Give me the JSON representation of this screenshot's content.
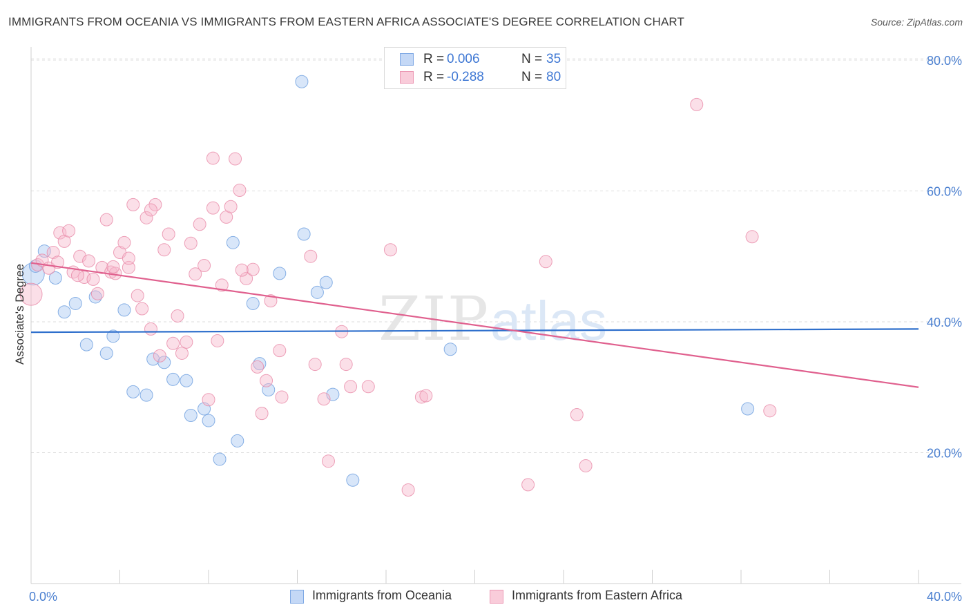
{
  "header": {
    "title": "IMMIGRANTS FROM OCEANIA VS IMMIGRANTS FROM EASTERN AFRICA ASSOCIATE'S DEGREE CORRELATION CHART",
    "source": "Source: ZipAtlas.com"
  },
  "watermark": {
    "zip": "ZIP",
    "atlas": "atlas"
  },
  "stats_legend": {
    "rows": [
      {
        "r_label": "R =",
        "r_value": "0.006",
        "n_label": "N =",
        "n_value": "35",
        "color": "#a9c8f2"
      },
      {
        "r_label": "R =",
        "r_value": "-0.288",
        "n_label": "N =",
        "n_value": "80",
        "color": "#f6b8cc"
      }
    ]
  },
  "bottom_legend": {
    "items": [
      {
        "label": "Immigrants from Oceania",
        "color": "#a9c8f2"
      },
      {
        "label": "Immigrants from Eastern Africa",
        "color": "#f6b8cc"
      }
    ]
  },
  "chart_data": {
    "type": "scatter",
    "title": "IMMIGRANTS FROM OCEANIA VS IMMIGRANTS FROM EASTERN AFRICA ASSOCIATE'S DEGREE CORRELATION CHART",
    "xlabel": "",
    "ylabel": "Associate's Degree",
    "xlim": [
      0,
      40
    ],
    "ylim": [
      0,
      82
    ],
    "x_tick_labels": [
      {
        "value": 0,
        "label": "0.0%"
      },
      {
        "value": 40,
        "label": "40.0%"
      }
    ],
    "y_tick_labels": [
      {
        "value": 20,
        "label": "20.0%"
      },
      {
        "value": 40,
        "label": "40.0%"
      },
      {
        "value": 60,
        "label": "60.0%"
      },
      {
        "value": 80,
        "label": "80.0%"
      }
    ],
    "grid": "horizontal-dashed",
    "legend_position": "bottom",
    "series": [
      {
        "name": "Immigrants from Oceania",
        "color": "#a9c8f2",
        "stroke": "#6c9edf",
        "trend": {
          "x": [
            0,
            40
          ],
          "y": [
            38.4,
            38.9
          ],
          "color": "#2e6fcc"
        },
        "points": [
          [
            0.1,
            47.3
          ],
          [
            0.6,
            50.8
          ],
          [
            1.1,
            46.7
          ],
          [
            1.5,
            41.5
          ],
          [
            2.0,
            42.8
          ],
          [
            2.5,
            36.5
          ],
          [
            2.9,
            43.8
          ],
          [
            3.4,
            35.2
          ],
          [
            3.7,
            37.8
          ],
          [
            4.2,
            41.8
          ],
          [
            4.6,
            29.3
          ],
          [
            5.2,
            28.8
          ],
          [
            5.5,
            34.3
          ],
          [
            6.0,
            33.8
          ],
          [
            6.4,
            31.2
          ],
          [
            7.0,
            31.0
          ],
          [
            7.2,
            25.7
          ],
          [
            7.8,
            26.7
          ],
          [
            8.0,
            24.9
          ],
          [
            8.5,
            19.0
          ],
          [
            9.1,
            52.1
          ],
          [
            9.3,
            21.8
          ],
          [
            10.0,
            42.8
          ],
          [
            10.3,
            33.6
          ],
          [
            10.7,
            29.6
          ],
          [
            11.2,
            47.4
          ],
          [
            12.3,
            53.4
          ],
          [
            12.9,
            44.5
          ],
          [
            13.3,
            46.0
          ],
          [
            13.6,
            28.9
          ],
          [
            14.5,
            15.8
          ],
          [
            12.2,
            76.7
          ],
          [
            18.9,
            35.8
          ],
          [
            32.3,
            26.7
          ],
          [
            0.2,
            48.5
          ]
        ]
      },
      {
        "name": "Immigrants from Eastern Africa",
        "color": "#f6b8cc",
        "stroke": "#e88aa8",
        "trend": {
          "x": [
            0,
            40
          ],
          "y": [
            49.0,
            30.0
          ],
          "color": "#e0608e"
        },
        "points": [
          [
            0.0,
            44.2
          ],
          [
            0.3,
            48.7
          ],
          [
            0.5,
            49.4
          ],
          [
            0.8,
            48.2
          ],
          [
            1.0,
            50.6
          ],
          [
            1.3,
            53.6
          ],
          [
            1.5,
            52.3
          ],
          [
            1.7,
            53.9
          ],
          [
            1.9,
            47.6
          ],
          [
            2.2,
            50.0
          ],
          [
            2.4,
            46.8
          ],
          [
            2.6,
            49.3
          ],
          [
            2.8,
            46.5
          ],
          [
            3.0,
            44.3
          ],
          [
            3.2,
            48.3
          ],
          [
            3.4,
            55.6
          ],
          [
            3.6,
            47.6
          ],
          [
            3.8,
            47.4
          ],
          [
            4.0,
            50.6
          ],
          [
            4.2,
            52.1
          ],
          [
            4.4,
            48.3
          ],
          [
            4.6,
            57.9
          ],
          [
            4.8,
            44.0
          ],
          [
            5.0,
            42.0
          ],
          [
            5.2,
            55.9
          ],
          [
            5.4,
            38.9
          ],
          [
            5.6,
            57.9
          ],
          [
            5.8,
            34.8
          ],
          [
            6.0,
            51.0
          ],
          [
            6.2,
            53.4
          ],
          [
            6.4,
            36.7
          ],
          [
            6.6,
            40.9
          ],
          [
            6.8,
            35.2
          ],
          [
            7.0,
            36.9
          ],
          [
            7.2,
            52.0
          ],
          [
            7.4,
            47.3
          ],
          [
            7.6,
            54.9
          ],
          [
            7.8,
            48.6
          ],
          [
            8.0,
            28.1
          ],
          [
            8.2,
            57.4
          ],
          [
            8.4,
            37.1
          ],
          [
            8.6,
            45.6
          ],
          [
            8.8,
            56.0
          ],
          [
            9.0,
            57.6
          ],
          [
            9.2,
            64.9
          ],
          [
            9.4,
            60.1
          ],
          [
            9.7,
            46.6
          ],
          [
            10.0,
            48.0
          ],
          [
            10.2,
            33.1
          ],
          [
            10.4,
            26.0
          ],
          [
            10.6,
            31.0
          ],
          [
            10.8,
            43.2
          ],
          [
            11.3,
            28.5
          ],
          [
            12.6,
            50.0
          ],
          [
            12.8,
            33.5
          ],
          [
            13.2,
            28.2
          ],
          [
            13.4,
            18.7
          ],
          [
            14.0,
            38.5
          ],
          [
            14.2,
            33.5
          ],
          [
            14.4,
            30.1
          ],
          [
            15.2,
            30.1
          ],
          [
            16.2,
            51.0
          ],
          [
            17.0,
            14.3
          ],
          [
            17.6,
            28.5
          ],
          [
            17.8,
            28.7
          ],
          [
            22.4,
            15.1
          ],
          [
            23.2,
            49.2
          ],
          [
            24.6,
            25.8
          ],
          [
            25.0,
            18.0
          ],
          [
            30.0,
            73.2
          ],
          [
            32.5,
            53.0
          ],
          [
            33.3,
            26.4
          ],
          [
            8.2,
            65.0
          ],
          [
            5.4,
            57.1
          ],
          [
            3.7,
            48.4
          ],
          [
            2.1,
            47.1
          ],
          [
            1.2,
            49.1
          ],
          [
            11.2,
            35.6
          ],
          [
            9.5,
            47.9
          ],
          [
            4.4,
            49.7
          ]
        ]
      }
    ]
  }
}
